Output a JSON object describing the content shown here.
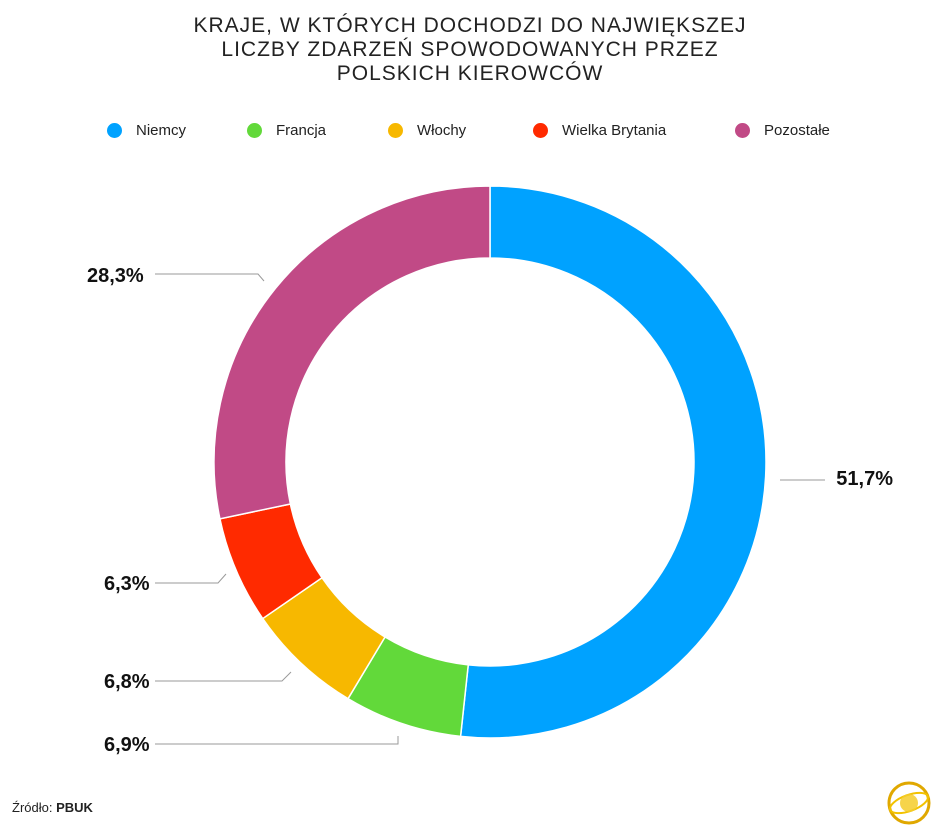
{
  "title_lines": [
    "KRAJE, W KTÓRYCH DOCHODZI DO NAJWIĘKSZEJ",
    "LICZBY ZDARZEŃ SPOWODOWANYCH PRZEZ",
    "POLSKICH KIEROWCÓW"
  ],
  "source": {
    "label": "Źródło:",
    "value": "PBUK"
  },
  "chart_data": {
    "type": "pie",
    "style": "donut",
    "legend_position": "top",
    "slices": [
      {
        "name": "Niemcy",
        "value": 51.7,
        "label": "51,7%",
        "color": "#00a2ff"
      },
      {
        "name": "Francja",
        "value": 6.9,
        "label": "6,9%",
        "color": "#62d93a"
      },
      {
        "name": "Włochy",
        "value": 6.8,
        "label": "6,8%",
        "color": "#f7b800"
      },
      {
        "name": "Wielka Brytania",
        "value": 6.3,
        "label": "6,3%",
        "color": "#ff2a00"
      },
      {
        "name": "Pozostałe",
        "value": 28.3,
        "label": "28,3%",
        "color": "#c14a86"
      }
    ]
  }
}
